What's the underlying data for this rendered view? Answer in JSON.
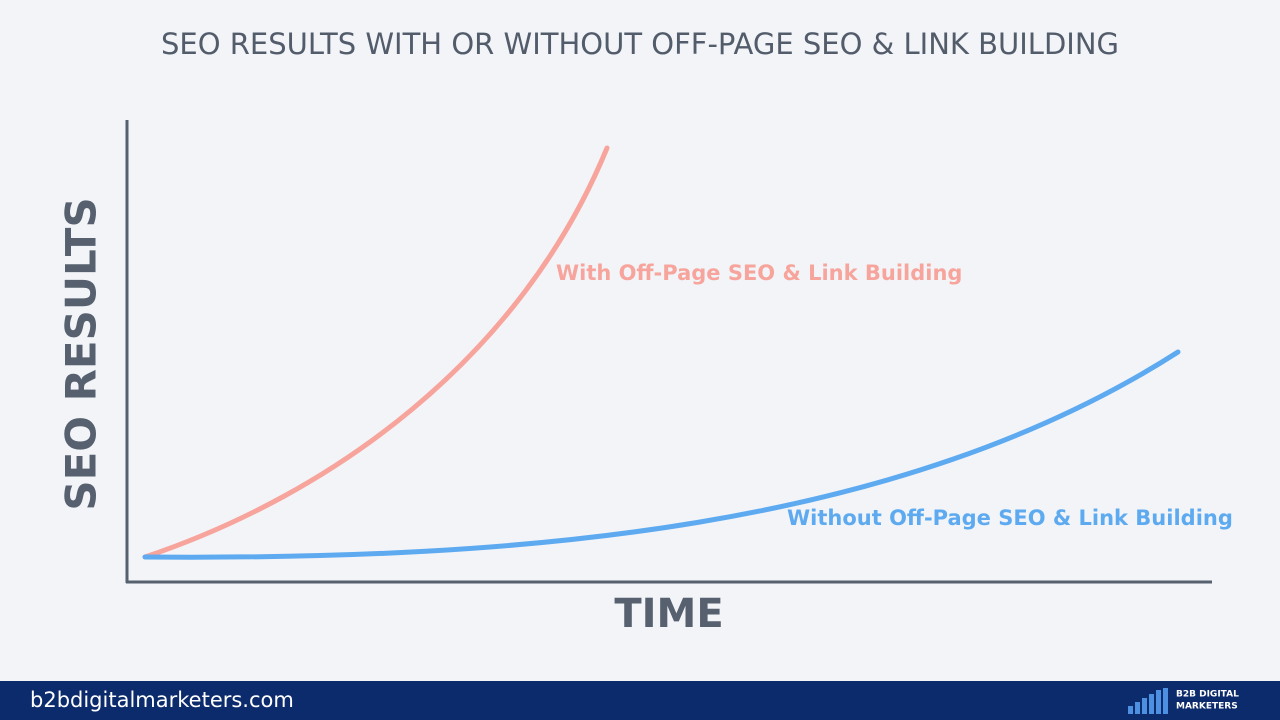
{
  "chart_data": {
    "type": "line",
    "title": "SEO RESULTS WITH OR WITHOUT OFF-PAGE SEO & LINK BUILDING",
    "ylabel": "SEO RESULTS",
    "xlabel": "TIME",
    "series": [
      {
        "name": "With Off-Page SEO & Link Building",
        "color": "#f7a59c"
      },
      {
        "name": "Without Off-Page SEO & Link Building",
        "color": "#5eaaf0"
      }
    ]
  },
  "footer": {
    "site": "b2bdigitalmarketers.com",
    "logo": [
      "B2B DIGITAL",
      "MARKETERS"
    ]
  }
}
